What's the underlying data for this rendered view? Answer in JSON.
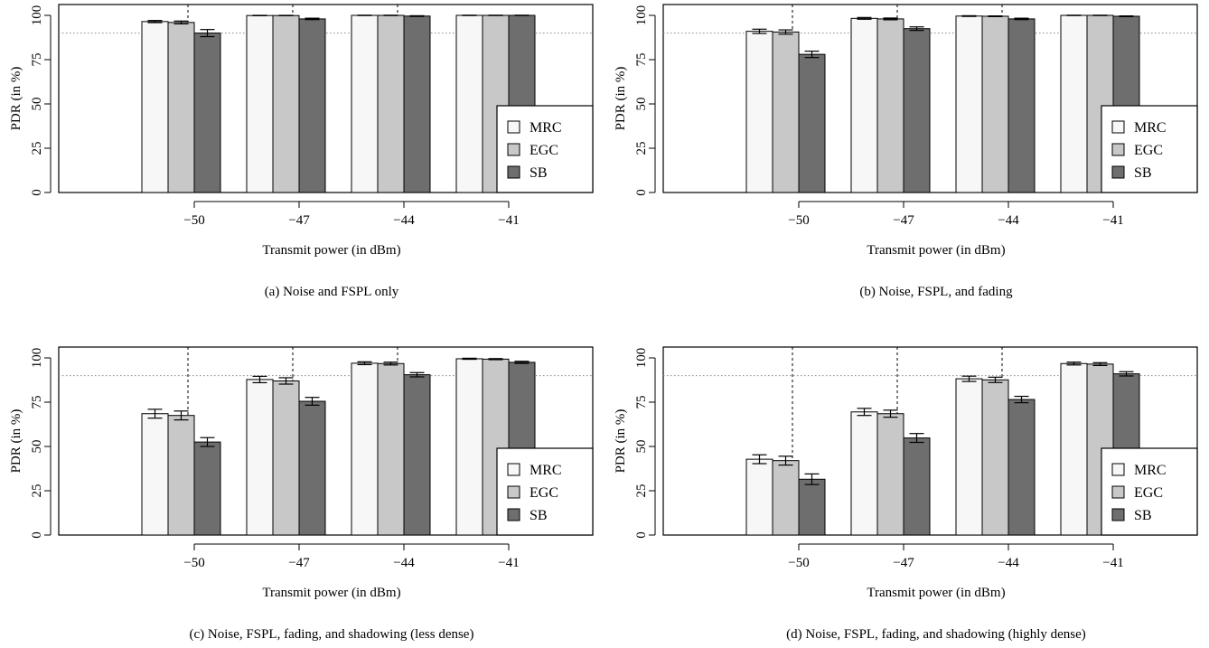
{
  "figure": {
    "colors": {
      "MRC": "#f7f7f7",
      "EGC": "#c8c8c8",
      "SB": "#6e6e6e",
      "stroke": "#000000",
      "reference_line": "#888888"
    },
    "reference_line_value": 90,
    "panels": [
      {
        "caption": "(a) Noise and FSPL only",
        "chart_data": {
          "type": "bar",
          "categories": [
            "−50",
            "−47",
            "−44",
            "−41"
          ],
          "xlabel": "Transmit power (in dBm)",
          "ylabel": "PDR (in %)",
          "ylim": [
            0,
            100
          ],
          "yticks": [
            "0",
            "25",
            "50",
            "75",
            "100"
          ],
          "grid": false,
          "legend_position": "right",
          "series": [
            {
              "name": "MRC",
              "values": [
                96.5,
                99.9,
                100,
                100
              ],
              "errors": [
                0.6,
                0.1,
                0.1,
                0.1
              ]
            },
            {
              "name": "EGC",
              "values": [
                96.0,
                99.9,
                100,
                100
              ],
              "errors": [
                0.8,
                0.1,
                0.1,
                0.1
              ]
            },
            {
              "name": "SB",
              "values": [
                90.0,
                98.0,
                99.6,
                100
              ],
              "errors": [
                2.0,
                0.4,
                0.2,
                0.1
              ]
            }
          ]
        }
      },
      {
        "caption": "(b) Noise, FSPL, and fading",
        "chart_data": {
          "type": "bar",
          "categories": [
            "−50",
            "−47",
            "−44",
            "−41"
          ],
          "xlabel": "Transmit power (in dBm)",
          "ylabel": "PDR (in %)",
          "ylim": [
            0,
            100
          ],
          "yticks": [
            "0",
            "25",
            "50",
            "75",
            "100"
          ],
          "grid": false,
          "legend_position": "right",
          "series": [
            {
              "name": "MRC",
              "values": [
                91.0,
                98.3,
                99.6,
                100
              ],
              "errors": [
                1.2,
                0.5,
                0.2,
                0.1
              ]
            },
            {
              "name": "EGC",
              "values": [
                90.6,
                98.0,
                99.5,
                100
              ],
              "errors": [
                1.2,
                0.5,
                0.2,
                0.1
              ]
            },
            {
              "name": "SB",
              "values": [
                78.0,
                92.5,
                98.0,
                99.5
              ],
              "errors": [
                1.8,
                1.0,
                0.4,
                0.2
              ]
            }
          ]
        }
      },
      {
        "caption": "(c) Noise, FSPL, fading, and shadowing (less dense)",
        "chart_data": {
          "type": "bar",
          "categories": [
            "−50",
            "−47",
            "−44",
            "−41"
          ],
          "xlabel": "Transmit power (in dBm)",
          "ylabel": "PDR (in %)",
          "ylim": [
            0,
            100
          ],
          "yticks": [
            "0",
            "25",
            "50",
            "75",
            "100"
          ],
          "grid": false,
          "legend_position": "right",
          "series": [
            {
              "name": "MRC",
              "values": [
                68.5,
                87.8,
                97.0,
                99.5
              ],
              "errors": [
                2.5,
                1.8,
                0.8,
                0.3
              ]
            },
            {
              "name": "EGC",
              "values": [
                67.5,
                87.0,
                96.8,
                99.3
              ],
              "errors": [
                2.5,
                1.8,
                0.8,
                0.3
              ]
            },
            {
              "name": "SB",
              "values": [
                52.5,
                75.5,
                90.5,
                97.5
              ],
              "errors": [
                2.5,
                2.2,
                1.2,
                0.6
              ]
            }
          ]
        }
      },
      {
        "caption": "(d) Noise, FSPL, fading, and shadowing (highly dense)",
        "chart_data": {
          "type": "bar",
          "categories": [
            "−50",
            "−47",
            "−44",
            "−41"
          ],
          "xlabel": "Transmit power (in dBm)",
          "ylabel": "PDR (in %)",
          "ylim": [
            0,
            100
          ],
          "yticks": [
            "0",
            "25",
            "50",
            "75",
            "100"
          ],
          "grid": false,
          "legend_position": "right",
          "series": [
            {
              "name": "MRC",
              "values": [
                42.8,
                69.5,
                88.2,
                96.8
              ],
              "errors": [
                2.5,
                2.0,
                1.5,
                0.8
              ]
            },
            {
              "name": "EGC",
              "values": [
                42.0,
                68.5,
                87.6,
                96.5
              ],
              "errors": [
                2.5,
                2.0,
                1.5,
                0.8
              ]
            },
            {
              "name": "SB",
              "values": [
                31.5,
                54.8,
                76.5,
                91.0
              ],
              "errors": [
                3.0,
                2.5,
                1.8,
                1.2
              ]
            }
          ]
        }
      }
    ]
  }
}
